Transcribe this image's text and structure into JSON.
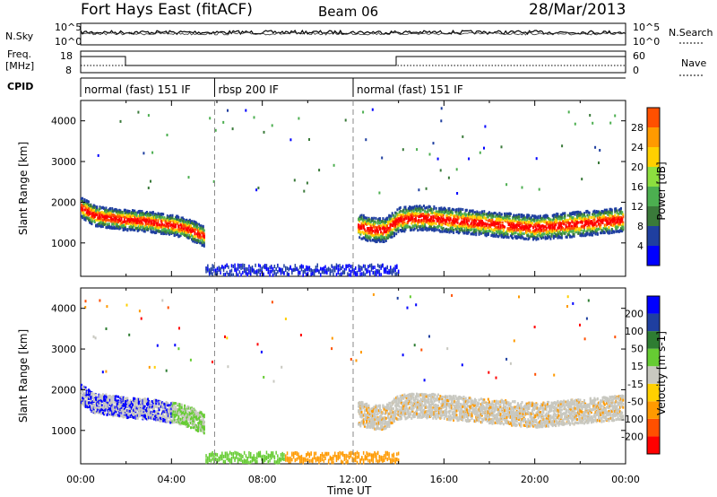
{
  "header": {
    "station": "Fort Hays East (fitACF)",
    "beam": "Beam 06",
    "date": "28/Mar/2013"
  },
  "left_labels": {
    "nsky": "N.Sky",
    "freq_top": "Freq.",
    "freq_unit": "[MHz]",
    "cpid": "CPID"
  },
  "right_labels": {
    "nsearch": "N.Search",
    "nave": "Nave"
  },
  "top_axis_ticks": {
    "noise_left": [
      "10^5",
      "10^0"
    ],
    "noise_right": [
      "10^5",
      "10^0"
    ],
    "freq_left": [
      "18",
      "8"
    ],
    "freq_right": [
      "60",
      "0"
    ]
  },
  "cpid_segments": [
    {
      "label": "normal (fast) 151 IF",
      "start_hour": 0,
      "end_hour": 5.9
    },
    {
      "label": "rbsp 200 IF",
      "start_hour": 5.9,
      "end_hour": 12.0
    },
    {
      "label": "normal (fast) 151 IF",
      "start_hour": 12.0,
      "end_hour": 24
    }
  ],
  "colors": {
    "power": [
      "#0000ff",
      "#1f3fa0",
      "#3a7a3a",
      "#4caf50",
      "#8ddf3f",
      "#ffd000",
      "#ff9a00",
      "#ff5000",
      "#ff0000"
    ],
    "velocity": [
      "#0000ff",
      "#1f3fa0",
      "#2e7d32",
      "#66cc33",
      "#c8c8c0",
      "#ffd000",
      "#ff9a00",
      "#ff5000",
      "#ff0000"
    ]
  },
  "chart_data": [
    {
      "type": "heatmap",
      "panel": "power",
      "title": "",
      "xlabel": "",
      "ylabel": "Slant Range [km]",
      "xlim": [
        0,
        24
      ],
      "ylim": [
        180,
        4500
      ],
      "yticks": [
        1000,
        2000,
        3000,
        4000
      ],
      "colorbar_label": "Power [dB]",
      "colorbar_ticks": [
        4,
        8,
        12,
        16,
        20,
        24,
        28
      ],
      "colorbar_range": [
        0,
        30
      ],
      "bands": [
        {
          "x": [
            0,
            0.6,
            1.2,
            1.8,
            2.4,
            3.0,
            3.6,
            4.2,
            4.8,
            5.4
          ],
          "y": [
            1900,
            1700,
            1650,
            1600,
            1580,
            1550,
            1500,
            1450,
            1350,
            1200
          ],
          "halfwidth": 250
        },
        {
          "x": [
            12.2,
            12.8,
            13.4,
            14.0,
            15.0,
            16.0,
            17.0,
            18.0,
            19.0,
            20.0,
            21.0,
            22.0,
            23.0,
            23.9
          ],
          "y": [
            1450,
            1350,
            1350,
            1600,
            1650,
            1600,
            1550,
            1500,
            1450,
            1400,
            1450,
            1500,
            1550,
            1600
          ],
          "halfwidth": 300
        }
      ]
    },
    {
      "type": "heatmap",
      "panel": "velocity",
      "title": "",
      "xlabel": "Time UT",
      "ylabel": "Slant Range [km]",
      "xlim": [
        0,
        24
      ],
      "ylim": [
        180,
        4500
      ],
      "yticks": [
        1000,
        2000,
        3000,
        4000
      ],
      "xticks": [
        "00:00",
        "04:00",
        "08:00",
        "12:00",
        "16:00",
        "20:00",
        "00:00"
      ],
      "colorbar_label": "Velocity [m s-1]",
      "colorbar_ticks": [
        200,
        100,
        50,
        15,
        -15,
        -50,
        -100,
        -200
      ],
      "colorbar_range": [
        -250,
        250
      ]
    }
  ]
}
